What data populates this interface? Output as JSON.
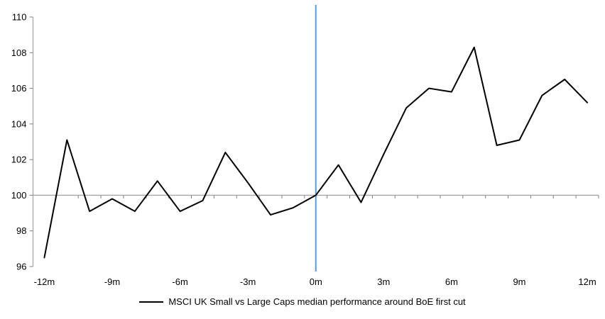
{
  "chart_data": {
    "type": "line",
    "title": "",
    "x_months": [
      -12,
      -11,
      -10,
      -9,
      -8,
      -7,
      -6,
      -5,
      -4,
      -3,
      -2,
      -1,
      0,
      1,
      2,
      3,
      4,
      5,
      6,
      7,
      8,
      9,
      10,
      11,
      12
    ],
    "series": [
      {
        "name": "MSCI UK Small vs Large Caps median performance around BoE first cut",
        "color": "#000000",
        "values": [
          96.5,
          103.1,
          99.1,
          99.8,
          99.1,
          100.8,
          99.1,
          99.7,
          102.4,
          100.7,
          98.9,
          99.3,
          100.0,
          101.7,
          99.6,
          102.3,
          104.9,
          106.0,
          105.8,
          108.3,
          102.8,
          103.1,
          105.6,
          106.5,
          105.2
        ]
      }
    ],
    "xlabel": "",
    "ylabel": "",
    "ylim": [
      96,
      110
    ],
    "ytick_step": 2,
    "ytick_labels": [
      "96",
      "98",
      "100",
      "102",
      "104",
      "106",
      "108",
      "110"
    ],
    "xtick_months": [
      -12,
      -9,
      -6,
      -3,
      0,
      3,
      6,
      9,
      12
    ],
    "xtick_labels": [
      "-12m",
      "-9m",
      "-6m",
      "-3m",
      "0m",
      "3m",
      "6m",
      "9m",
      "12m"
    ],
    "baseline_value": 100,
    "event_line_x": 0,
    "grid": "baseline-only",
    "legend_position": "bottom-center",
    "colors": {
      "series": "#000000",
      "event_line": "#5B9BD5",
      "axis_line": "#A6A6A6",
      "tick_mark": "#7F7F7F",
      "text": "#000000"
    }
  }
}
